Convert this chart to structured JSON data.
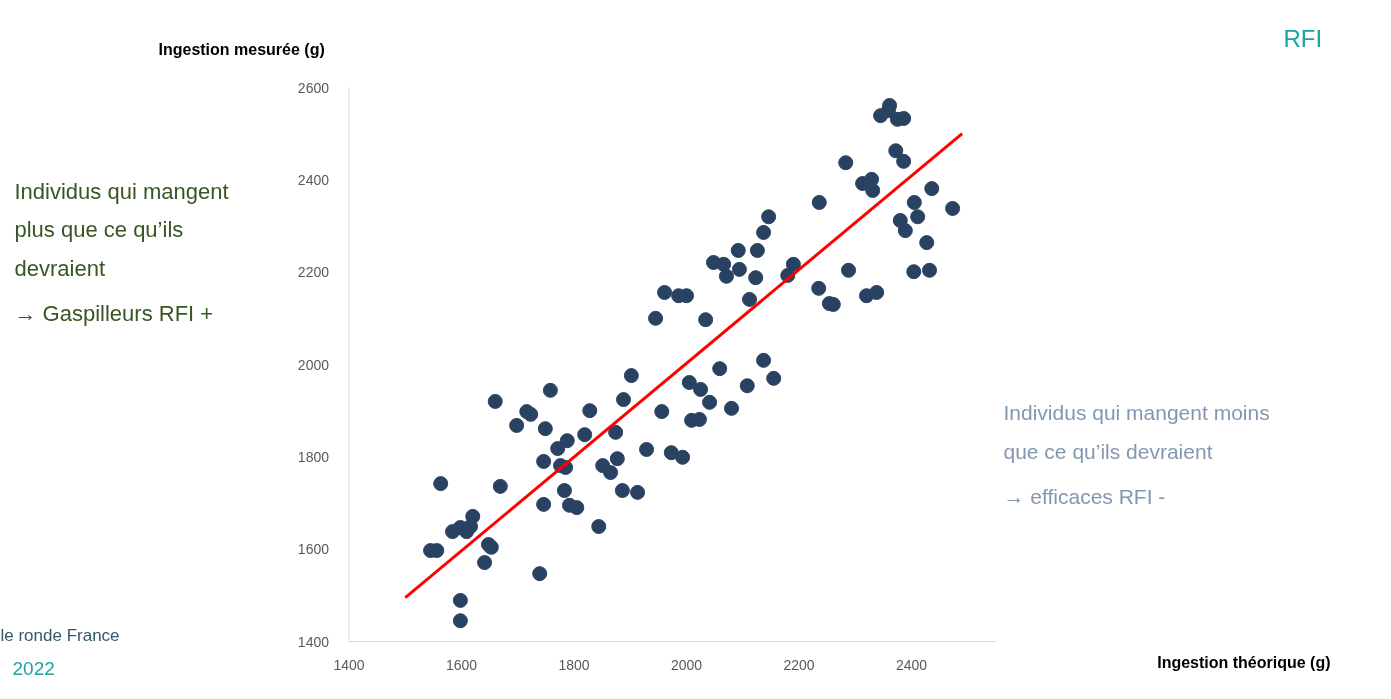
{
  "chart_data": {
    "type": "scatter",
    "ylabel": "Ingestion mesurée (g)",
    "annotations": [
      "Ingestion théorique (g)",
      "RFI",
      "Individus qui mangent",
      "plus que ce qu’ils",
      "devraient",
      "→ Gaspilleurs RFI +",
      "Individus qui mangent moins",
      "que ce qu’ils devraient",
      "→ efficaces RFI -",
      "le ronde France",
      "2022"
    ],
    "xlim": [
      1400,
      2550
    ],
    "ylim": [
      1400,
      2600
    ],
    "xticks": [
      1400,
      1600,
      1800,
      2000,
      2200,
      2400
    ],
    "yticks": [
      1400,
      1600,
      1800,
      2000,
      2200,
      2400,
      2600
    ],
    "marker": "circle",
    "series": [
      {
        "color": "#2a4262",
        "x": [
          1545,
          1556,
          1563,
          1584,
          1598,
          1609,
          1616,
          1620,
          1598,
          1598,
          1641,
          1648,
          1653,
          1660,
          1669,
          1698,
          1716,
          1723,
          1739,
          1746,
          1746,
          1758,
          1749,
          1771,
          1776,
          1785,
          1788,
          1783,
          1792,
          1805,
          1819,
          1828,
          1844,
          1851,
          1865,
          1874,
          1877,
          1886,
          1888,
          1902,
          1913,
          1929,
          1945,
          1956,
          1961,
          1973,
          1986,
          1993,
          2000,
          2005,
          2009,
          2023,
          2025,
          2034,
          2041,
          2048,
          2059,
          2066,
          2071,
          2080,
          2092,
          2094,
          2108,
          2112,
          2123,
          2126,
          2137,
          2137,
          2146,
          2155,
          2180,
          2190,
          2235,
          2236,
          2254,
          2261,
          2283,
          2288,
          2313,
          2320,
          2329,
          2331,
          2338,
          2345,
          2359,
          2361,
          2372,
          2375,
          2386,
          2386,
          2380,
          2389,
          2405,
          2411,
          2404,
          2427,
          2432,
          2436,
          2473
        ],
        "values": [
          1597,
          1597,
          1742,
          1638,
          1647,
          1638,
          1649,
          1671,
          1489,
          1445,
          1571,
          1610,
          1604,
          1920,
          1736,
          1868,
          1898,
          1892,
          1547,
          1697,
          1790,
          1944,
          1861,
          1818,
          1781,
          1777,
          1835,
          1727,
          1695,
          1690,
          1848,
          1900,
          1649,
          1781,
          1766,
          1853,
          1796,
          1727,
          1924,
          1976,
          1723,
          1816,
          2100,
          1898,
          2156,
          1809,
          2149,
          1799,
          2149,
          1961,
          1879,
          1881,
          1946,
          2097,
          1918,
          2221,
          1991,
          2217,
          2191,
          1905,
          2247,
          2206,
          1954,
          2141,
          2188,
          2247,
          2009,
          2286,
          2320,
          1970,
          2193,
          2217,
          2165,
          2351,
          2132,
          2130,
          2437,
          2204,
          2392,
          2149,
          2401,
          2377,
          2156,
          2539,
          2550,
          2561,
          2463,
          2531,
          2533,
          2440,
          2312,
          2290,
          2351,
          2320,
          2201,
          2264,
          2204,
          2381,
          2338
        ]
      },
      {
        "type": "line",
        "marker": "none",
        "color": "#ff0000",
        "x": [
          1500,
          2490
        ],
        "values": [
          1495,
          2500
        ]
      }
    ]
  }
}
